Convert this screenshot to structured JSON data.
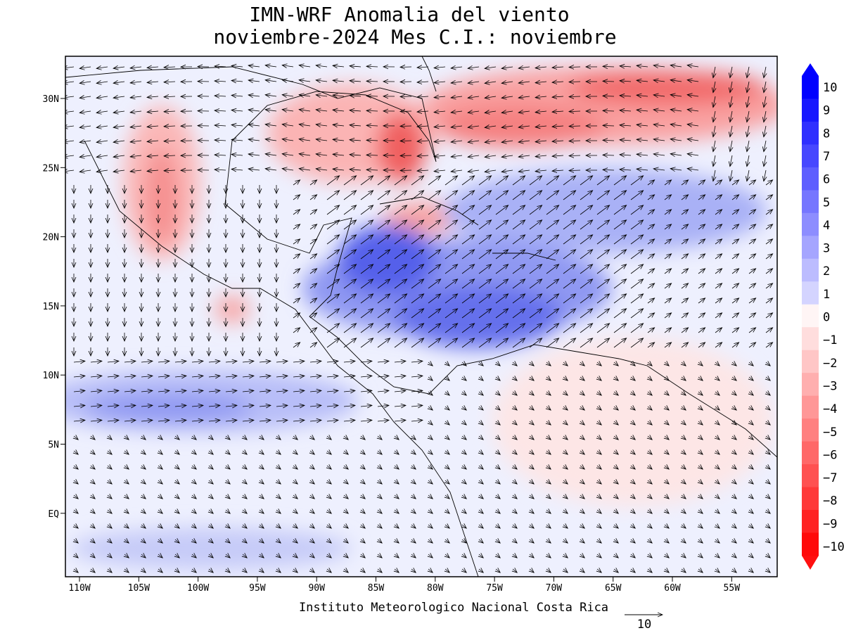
{
  "title": "IMN-WRF Anomalia del viento",
  "subtitle": "noviembre-2024 Mes C.I.: noviembre",
  "latitude_labels": [
    "30N",
    "25N",
    "20N",
    "15N",
    "10N",
    "5N",
    "EQ"
  ],
  "longitude_labels": [
    "110W",
    "105W",
    "100W",
    "95W",
    "90W",
    "85W",
    "80W",
    "75W",
    "70W",
    "65W",
    "60W",
    "55W"
  ],
  "colorbar_labels": [
    "10",
    "9",
    "8",
    "7",
    "6",
    "5",
    "4",
    "3",
    "2",
    "1",
    "0",
    "−1",
    "−2",
    "−3",
    "−4",
    "−5",
    "−6",
    "−7",
    "−8",
    "−9",
    "−10"
  ],
  "footer": "Instituto Meteorologico Nacional Costa Rica",
  "reference_vector": "10"
}
